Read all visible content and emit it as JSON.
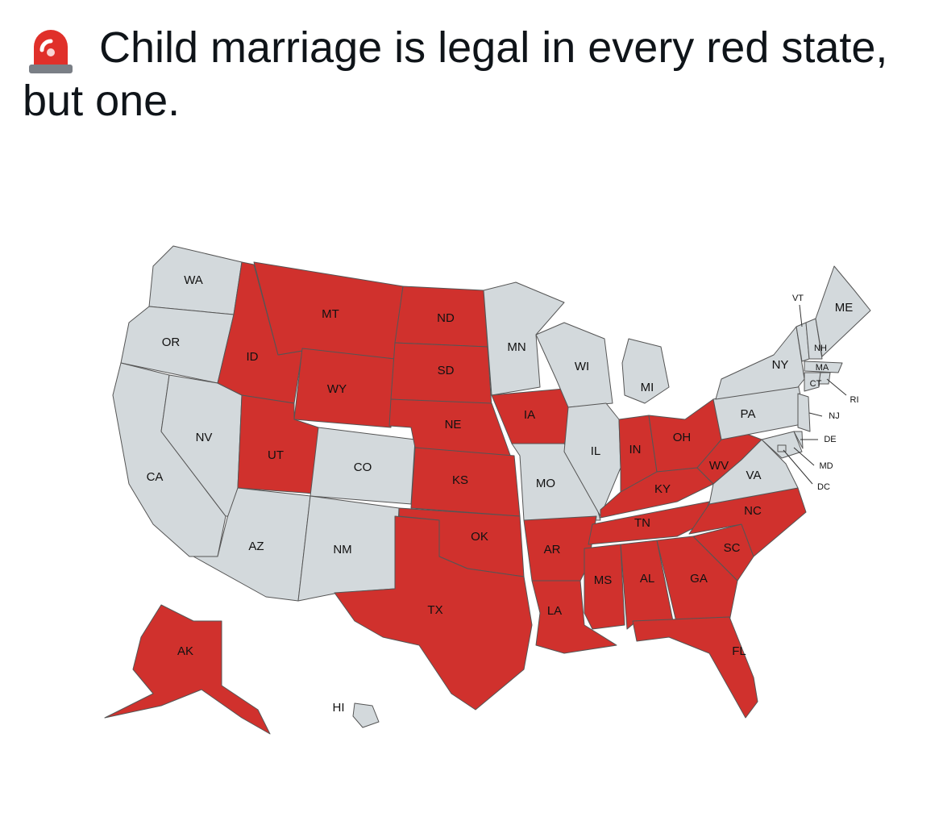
{
  "header": {
    "title": "Child marriage is legal in every red state, but one."
  },
  "map": {
    "colors": {
      "highlighted": "#d0312d",
      "other": "#d3d9dc",
      "border": "#555555"
    },
    "states": [
      {
        "label": "WA",
        "highlighted": false
      },
      {
        "label": "OR",
        "highlighted": false
      },
      {
        "label": "CA",
        "highlighted": false
      },
      {
        "label": "NV",
        "highlighted": false
      },
      {
        "label": "ID",
        "highlighted": true
      },
      {
        "label": "MT",
        "highlighted": true
      },
      {
        "label": "WY",
        "highlighted": true
      },
      {
        "label": "UT",
        "highlighted": true
      },
      {
        "label": "CO",
        "highlighted": false
      },
      {
        "label": "AZ",
        "highlighted": false
      },
      {
        "label": "NM",
        "highlighted": false
      },
      {
        "label": "ND",
        "highlighted": true
      },
      {
        "label": "SD",
        "highlighted": true
      },
      {
        "label": "NE",
        "highlighted": true
      },
      {
        "label": "KS",
        "highlighted": true
      },
      {
        "label": "OK",
        "highlighted": true
      },
      {
        "label": "TX",
        "highlighted": true
      },
      {
        "label": "MN",
        "highlighted": false
      },
      {
        "label": "IA",
        "highlighted": true
      },
      {
        "label": "MO",
        "highlighted": false
      },
      {
        "label": "AR",
        "highlighted": true
      },
      {
        "label": "LA",
        "highlighted": true
      },
      {
        "label": "WI",
        "highlighted": false
      },
      {
        "label": "IL",
        "highlighted": false
      },
      {
        "label": "MI",
        "highlighted": false
      },
      {
        "label": "IN",
        "highlighted": true
      },
      {
        "label": "OH",
        "highlighted": true
      },
      {
        "label": "KY",
        "highlighted": true
      },
      {
        "label": "TN",
        "highlighted": true
      },
      {
        "label": "MS",
        "highlighted": true
      },
      {
        "label": "AL",
        "highlighted": true
      },
      {
        "label": "GA",
        "highlighted": true
      },
      {
        "label": "FL",
        "highlighted": true
      },
      {
        "label": "SC",
        "highlighted": true
      },
      {
        "label": "NC",
        "highlighted": true
      },
      {
        "label": "VA",
        "highlighted": false
      },
      {
        "label": "WV",
        "highlighted": true
      },
      {
        "label": "PA",
        "highlighted": false
      },
      {
        "label": "NY",
        "highlighted": false
      },
      {
        "label": "VT",
        "highlighted": false
      },
      {
        "label": "NH",
        "highlighted": false
      },
      {
        "label": "MA",
        "highlighted": false
      },
      {
        "label": "CT",
        "highlighted": false
      },
      {
        "label": "RI",
        "highlighted": false
      },
      {
        "label": "NJ",
        "highlighted": false
      },
      {
        "label": "DE",
        "highlighted": false
      },
      {
        "label": "MD",
        "highlighted": false
      },
      {
        "label": "DC",
        "highlighted": false
      },
      {
        "label": "ME",
        "highlighted": false
      },
      {
        "label": "AK",
        "highlighted": true
      },
      {
        "label": "HI",
        "highlighted": false
      }
    ]
  }
}
